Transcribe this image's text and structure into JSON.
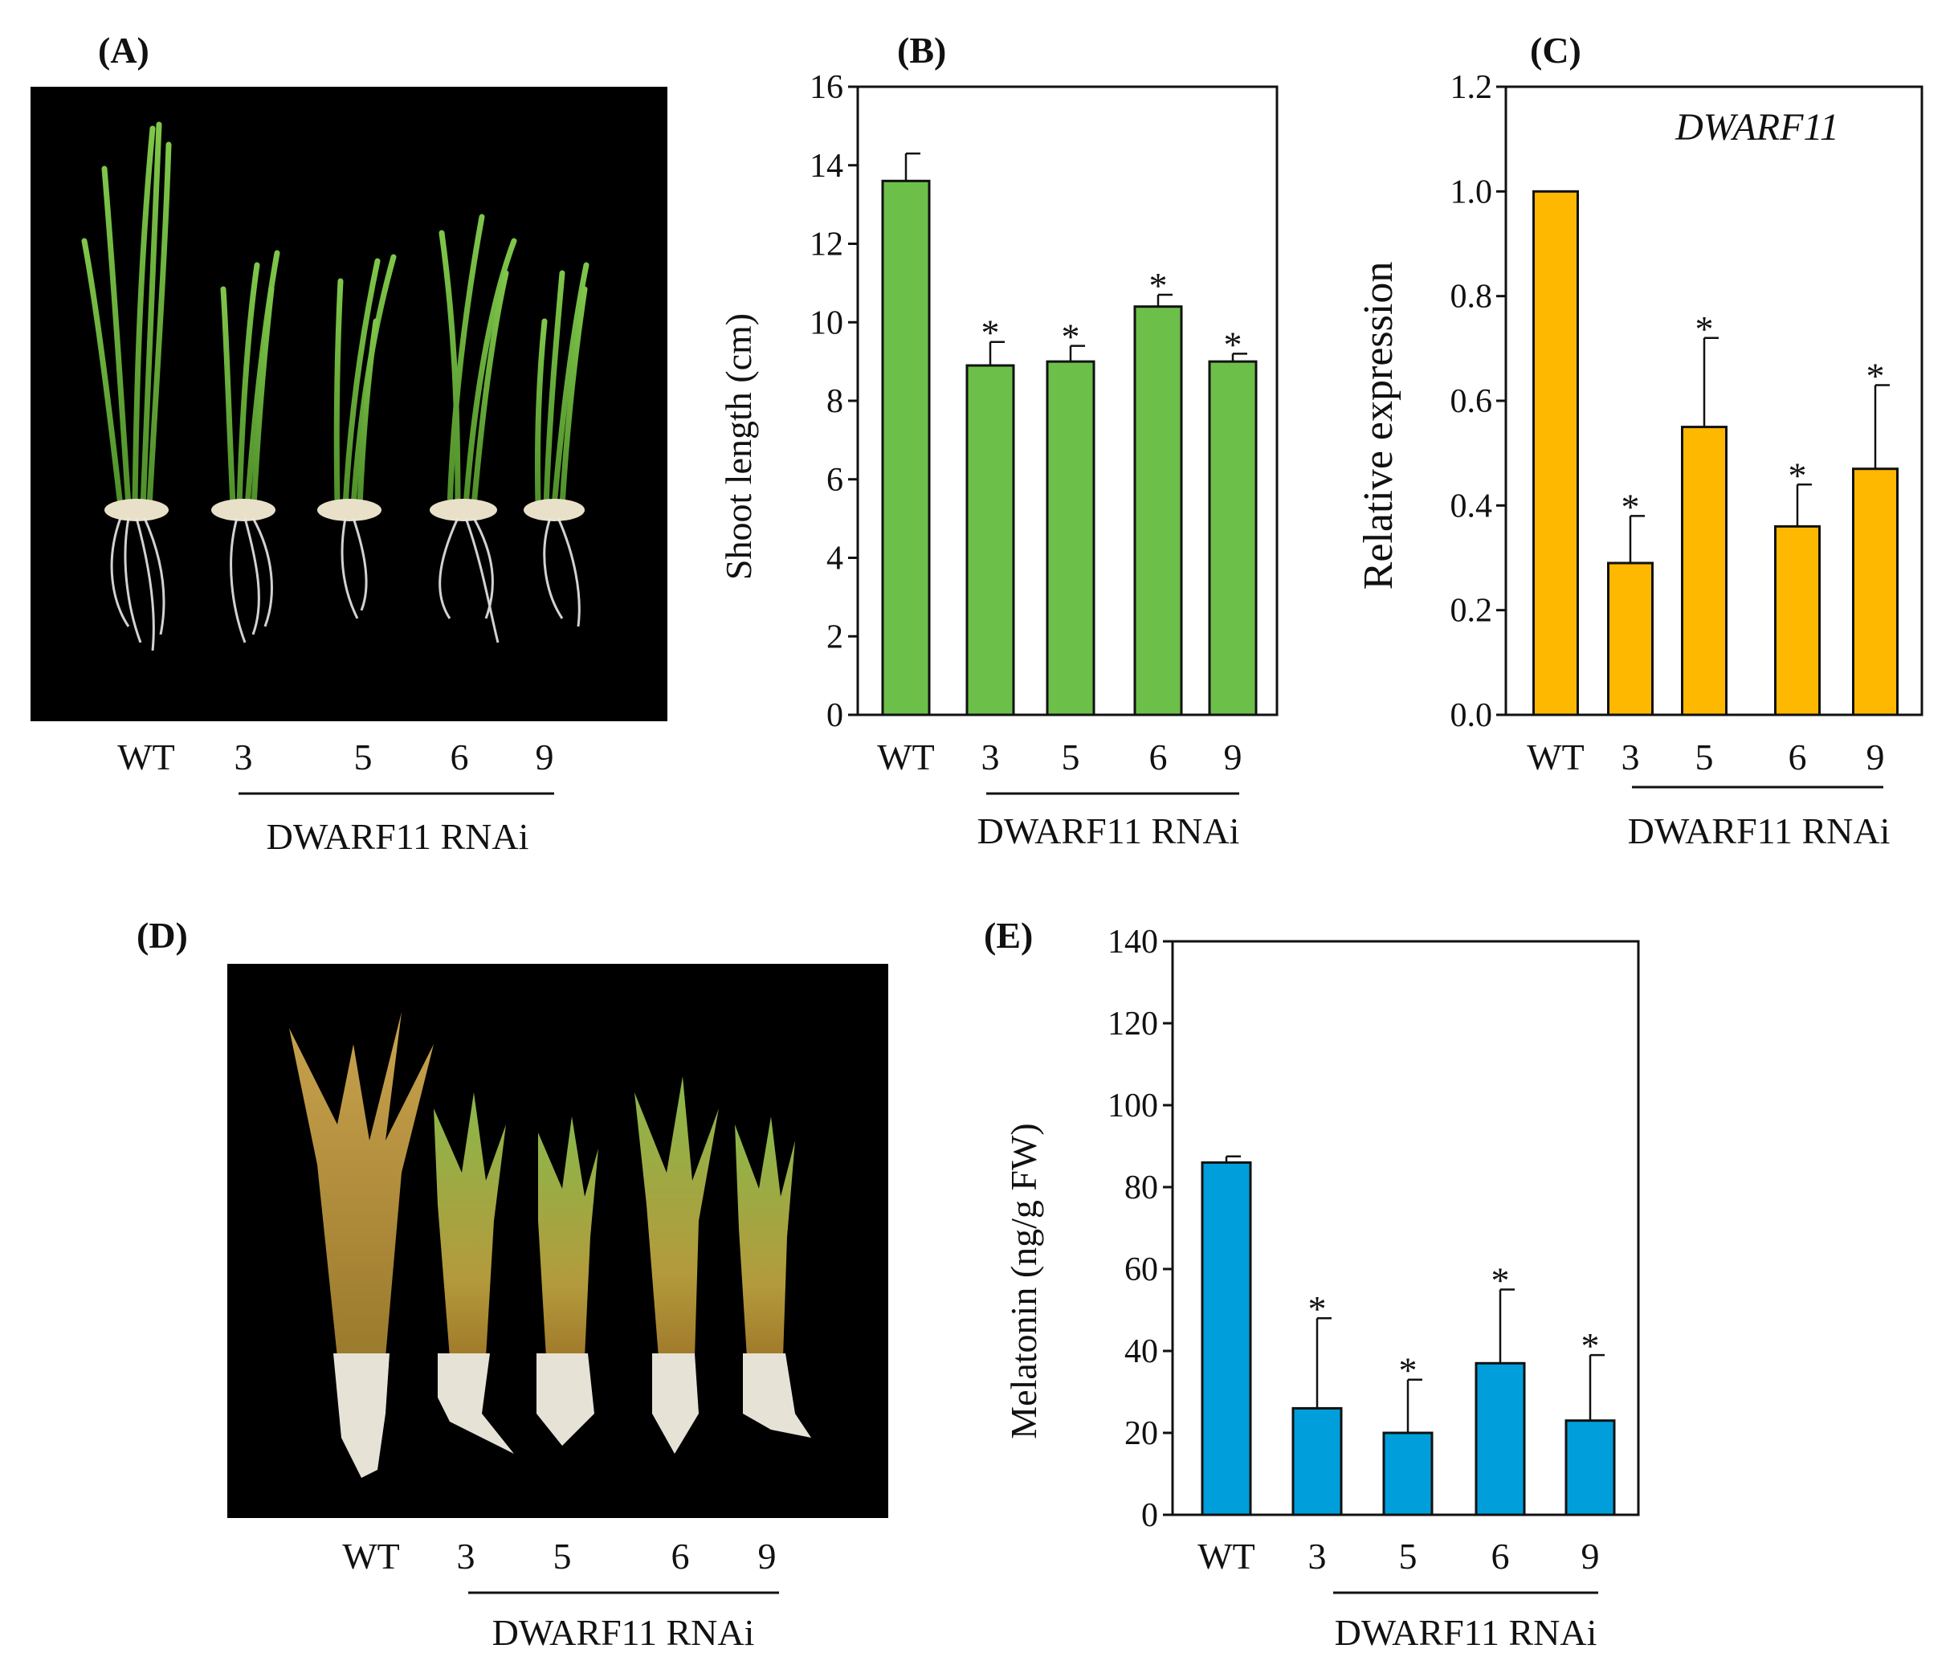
{
  "panels": {
    "A": {
      "label": "(A)",
      "categories": [
        "WT",
        "3",
        "5",
        "6",
        "9"
      ],
      "group_label": "DWARF11 RNAi"
    },
    "D": {
      "label": "(D)",
      "categories": [
        "WT",
        "3",
        "5",
        "6",
        "9"
      ],
      "group_label": "DWARF11 RNAi"
    }
  },
  "chart_data": [
    {
      "id": "B",
      "panel_label": "(B)",
      "type": "bar",
      "color": "#6cc04a",
      "categories": [
        "WT",
        "3",
        "5",
        "6",
        "9"
      ],
      "values": [
        13.6,
        8.9,
        9.0,
        10.4,
        9.0
      ],
      "errors": [
        0.7,
        0.6,
        0.4,
        0.3,
        0.2
      ],
      "significance": [
        "",
        "*",
        "*",
        "*",
        "*"
      ],
      "ylabel": "Shoot length (cm)",
      "ylim": [
        0,
        16
      ],
      "yticks": [
        "0",
        "2",
        "4",
        "6",
        "8",
        "10",
        "12",
        "14",
        "16"
      ],
      "group_label": "DWARF11 RNAi",
      "title": ""
    },
    {
      "id": "C",
      "panel_label": "(C)",
      "type": "bar",
      "color": "#ffb800",
      "categories": [
        "WT",
        "3",
        "5",
        "6",
        "9"
      ],
      "values": [
        1.0,
        0.29,
        0.55,
        0.36,
        0.47
      ],
      "errors": [
        0.0,
        0.09,
        0.17,
        0.08,
        0.16
      ],
      "significance": [
        "",
        "*",
        "*",
        "*",
        "*"
      ],
      "ylabel": "Relative expression",
      "ylim": [
        0,
        1.2
      ],
      "yticks": [
        "0.0",
        "0.2",
        "0.4",
        "0.6",
        "0.8",
        "1.0",
        "1.2"
      ],
      "group_label": "DWARF11 RNAi",
      "title": "DWARF11"
    },
    {
      "id": "E",
      "panel_label": "(E)",
      "type": "bar",
      "color": "#009fdb",
      "categories": [
        "WT",
        "3",
        "5",
        "6",
        "9"
      ],
      "values": [
        86,
        26,
        20,
        37,
        23
      ],
      "errors": [
        1.5,
        22,
        13,
        18,
        16
      ],
      "significance": [
        "",
        "*",
        "*",
        "*",
        "*"
      ],
      "ylabel": "Melatonin (ng/g FW)",
      "ylim": [
        0,
        140
      ],
      "yticks": [
        "0",
        "20",
        "40",
        "60",
        "80",
        "100",
        "120",
        "140"
      ],
      "group_label": "DWARF11 RNAi",
      "title": ""
    }
  ]
}
